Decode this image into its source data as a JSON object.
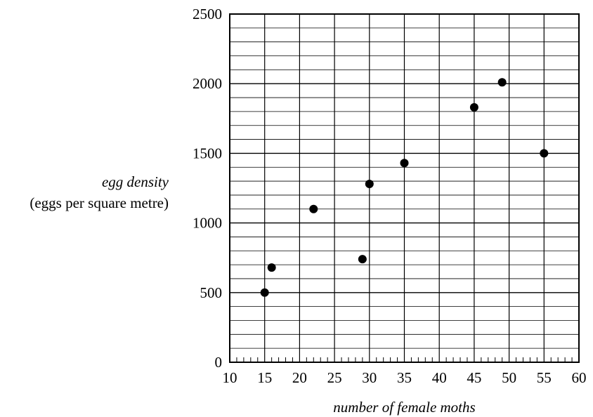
{
  "chart_data": {
    "type": "scatter",
    "title": "",
    "xlabel": "number of female moths",
    "ylabel_line1": "egg density",
    "ylabel_line2": "(eggs per square metre)",
    "xlim": [
      10,
      60
    ],
    "ylim": [
      0,
      2500
    ],
    "x_ticks": [
      "10",
      "15",
      "20",
      "25",
      "30",
      "35",
      "40",
      "45",
      "50",
      "55",
      "60"
    ],
    "y_ticks": [
      "0",
      "500",
      "1000",
      "1500",
      "2000",
      "2500"
    ],
    "x_major_step": 5,
    "x_minor_step": 1,
    "y_major_step": 500,
    "y_minor_step": 100,
    "grid": true,
    "point_color": "#000000",
    "points": [
      {
        "x": 15,
        "y": 500
      },
      {
        "x": 16,
        "y": 680
      },
      {
        "x": 22,
        "y": 1100
      },
      {
        "x": 29,
        "y": 740
      },
      {
        "x": 30,
        "y": 1280
      },
      {
        "x": 35,
        "y": 1430
      },
      {
        "x": 45,
        "y": 1830
      },
      {
        "x": 49,
        "y": 2010
      },
      {
        "x": 55,
        "y": 1500
      }
    ]
  }
}
